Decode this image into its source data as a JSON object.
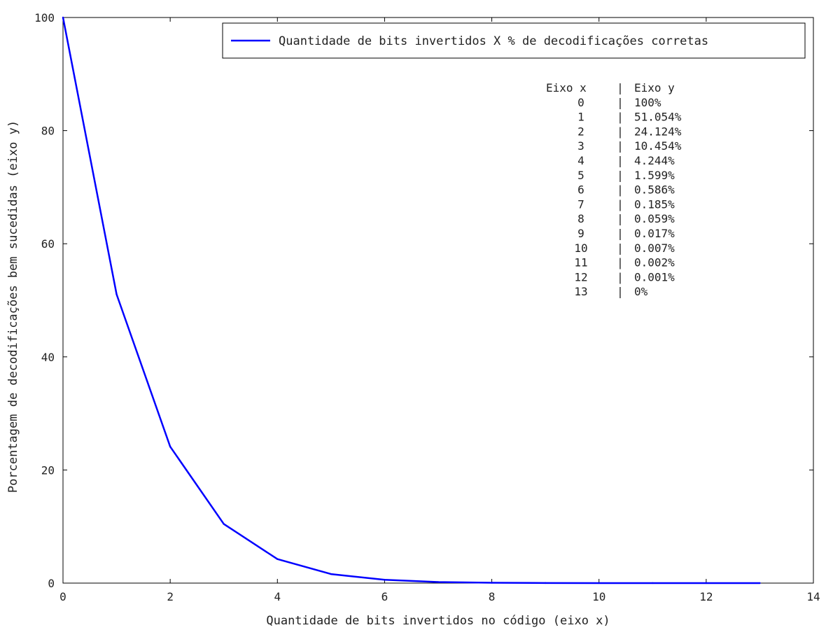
{
  "chart_data": {
    "type": "line",
    "xlabel": "Quantidade de bits invertidos no código (eixo x)",
    "ylabel": "Porcentagem de decodificações bem sucedidas (eixo y)",
    "xlim": [
      0,
      14
    ],
    "ylim": [
      0,
      100
    ],
    "x_ticks": [
      "0",
      "2",
      "4",
      "6",
      "8",
      "10",
      "12",
      "14"
    ],
    "y_ticks": [
      "0",
      "20",
      "40",
      "60",
      "80",
      "100"
    ],
    "grid": false,
    "legend_position": "top-right",
    "series_color": "#0000ff",
    "series": [
      {
        "name": "Quantidade de bits invertidos X % de decodificações corretas",
        "x": [
          0,
          1,
          2,
          3,
          4,
          5,
          6,
          7,
          8,
          9,
          10,
          11,
          12,
          13
        ],
        "y": [
          100,
          51.054,
          24.124,
          10.454,
          4.244,
          1.599,
          0.586,
          0.185,
          0.059,
          0.017,
          0.007,
          0.002,
          0.001,
          0
        ]
      }
    ],
    "annotation_table": {
      "header": [
        "Eixo x",
        "Eixo y"
      ],
      "rows": [
        [
          "0",
          "100%"
        ],
        [
          "1",
          "51.054%"
        ],
        [
          "2",
          "24.124%"
        ],
        [
          "3",
          "10.454%"
        ],
        [
          "4",
          "4.244%"
        ],
        [
          "5",
          "1.599%"
        ],
        [
          "6",
          "0.586%"
        ],
        [
          "7",
          "0.185%"
        ],
        [
          "8",
          "0.059%"
        ],
        [
          "9",
          "0.017%"
        ],
        [
          "10",
          "0.007%"
        ],
        [
          "11",
          "0.002%"
        ],
        [
          "12",
          "0.001%"
        ],
        [
          "13",
          "0%"
        ]
      ]
    }
  }
}
